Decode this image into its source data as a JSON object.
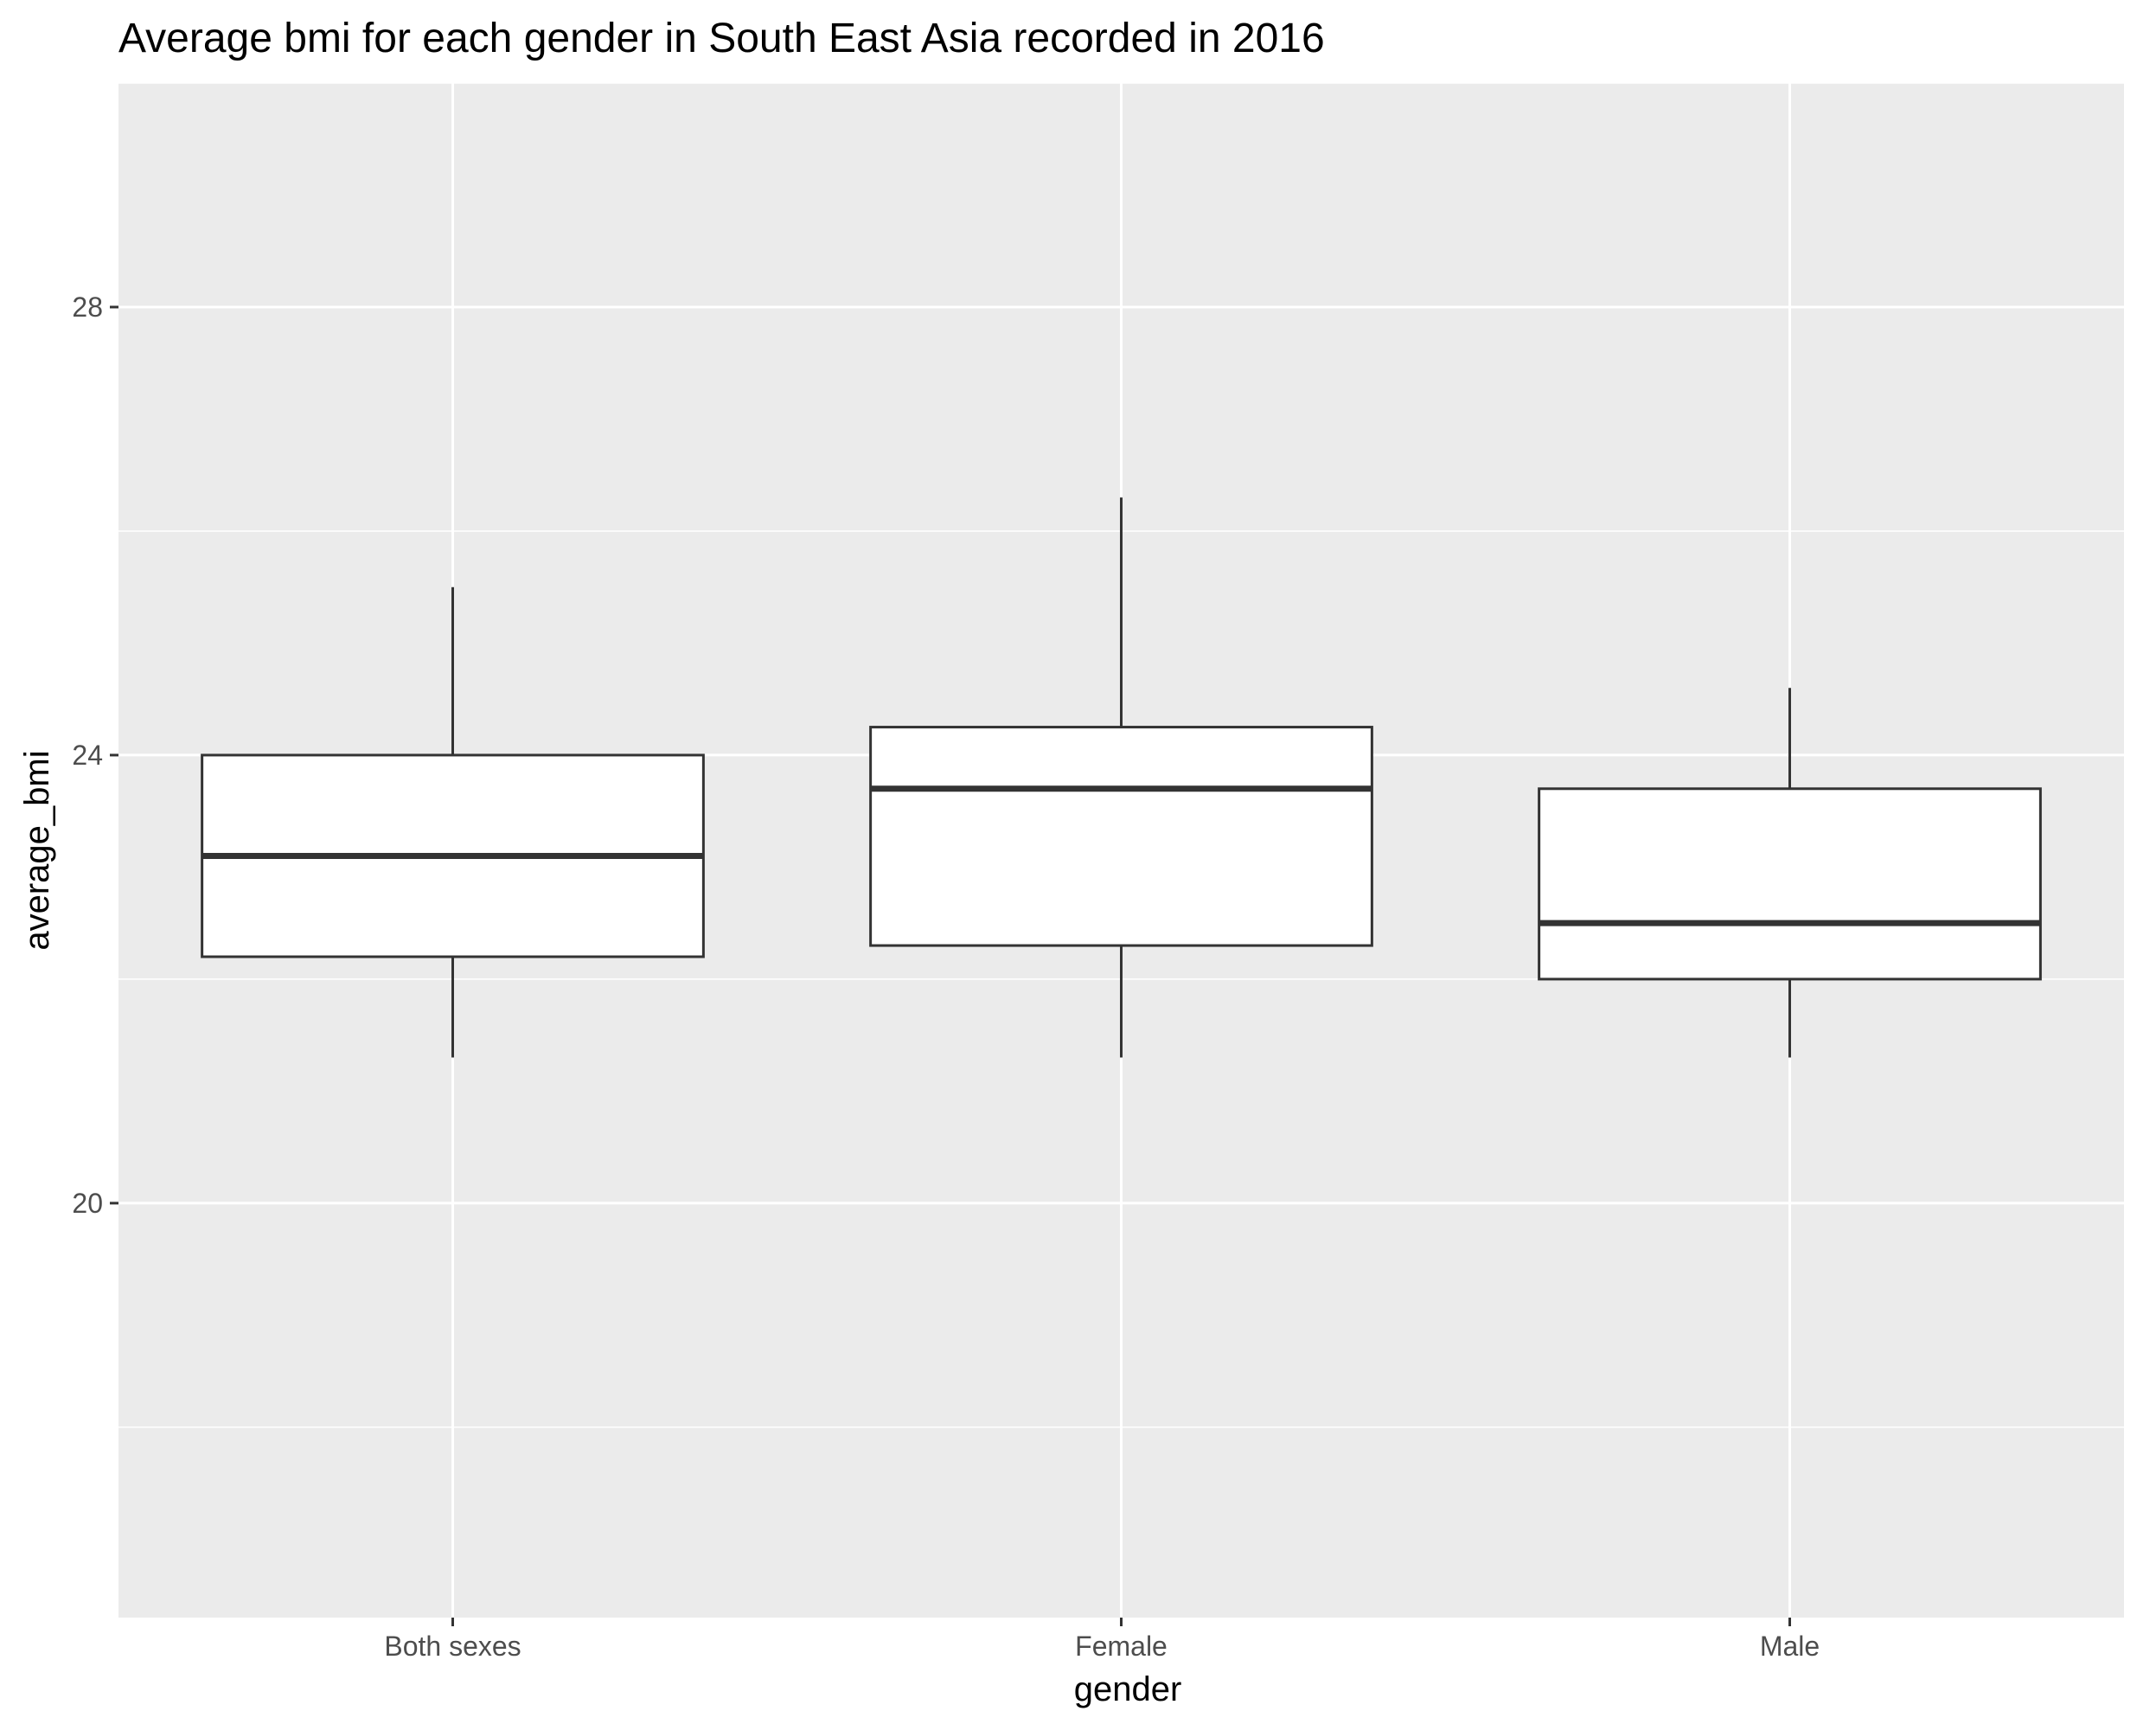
{
  "chart_data": {
    "type": "boxplot",
    "title": "Average bmi for each gender in South East Asia recorded in 2016",
    "xlabel": "gender",
    "ylabel": "average_bmi",
    "categories": [
      "Both sexes",
      "Female",
      "Male"
    ],
    "boxes": [
      {
        "category": "Both sexes",
        "whisker_low": 21.3,
        "q1": 22.2,
        "median": 23.1,
        "q3": 24.0,
        "whisker_high": 25.5
      },
      {
        "category": "Female",
        "whisker_low": 21.3,
        "q1": 22.3,
        "median": 23.7,
        "q3": 24.25,
        "whisker_high": 26.3
      },
      {
        "category": "Male",
        "whisker_low": 21.3,
        "q1": 22.0,
        "median": 22.5,
        "q3": 23.7,
        "whisker_high": 24.6
      }
    ],
    "ylim": [
      16.3,
      30.0
    ],
    "y_ticks": [
      20,
      24,
      28
    ],
    "y_tick_labels": [
      "20",
      "24",
      "28"
    ],
    "grid": true,
    "colors": {
      "panel_background": "#ebebeb",
      "grid_line": "#ffffff",
      "box_fill": "#ffffff",
      "box_stroke": "#333333",
      "tick_mark": "#333333"
    }
  }
}
